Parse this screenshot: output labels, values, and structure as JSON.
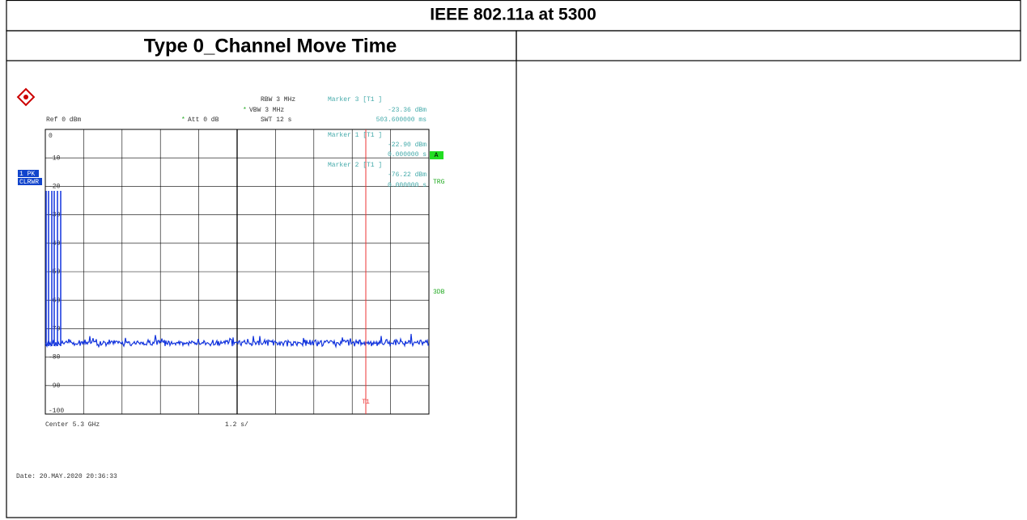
{
  "header": {
    "title": "IEEE 802.11a at 5300"
  },
  "section": {
    "title": "Type 0_Channel Move Time"
  },
  "plot": {
    "settings": [
      "RBW 3 MHz",
      "VBW 3 MHz",
      "SWT 12 s"
    ],
    "ref": "Ref  0 dBm",
    "att": "Att  0 dB",
    "markers": [
      {
        "label": "Marker 3 [T1 ]",
        "level": "-23.36 dBm",
        "time": "503.600000 ms"
      },
      {
        "label": "Marker 1 [T1 ]",
        "level": "-22.90 dBm",
        "time": "0.000000 s"
      },
      {
        "label": "Marker 2 [T1 ]",
        "level": "-76.22 dBm",
        "time": "0.000000 s"
      }
    ],
    "y_labels": [
      "0",
      "-10",
      "-20",
      "-30",
      "-40",
      "-50",
      "-60",
      "-70",
      "-80",
      "-90",
      "-100"
    ],
    "badges": [
      "1 PK",
      "CLRWR"
    ],
    "right_badges": [
      "A",
      "TRG",
      "3DB"
    ],
    "cursor": "T1",
    "center": "Center 5.3 GHz",
    "span": "1.2 s/",
    "date": "Date: 20.MAY.2020  20:36:33"
  }
}
